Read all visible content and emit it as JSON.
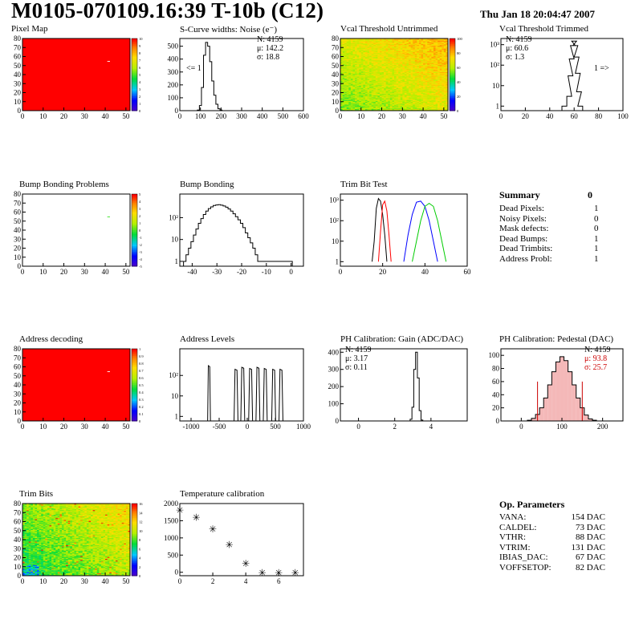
{
  "header": {
    "title": "M0105-070109.16:39 T-10b (C12)",
    "date": "Thu Jan 18 20:04:47 2007"
  },
  "panels": {
    "pixel_map": {
      "title": "Pixel Map"
    },
    "scurve": {
      "title": "S-Curve widths: Noise (e⁻)",
      "stats": [
        "N: 4159",
        "μ: 142.2",
        "σ: 18.8"
      ],
      "under_label": "<= 1"
    },
    "vcal_untrimmed": {
      "title": "Vcal Threshold Untrimmed"
    },
    "vcal_trimmed": {
      "title": "Vcal Threshold Trimmed",
      "stats": [
        "N: 4159",
        "μ: 60.6",
        "σ:  1.3"
      ],
      "over_label": "1 =>"
    },
    "bump_problems": {
      "title": "Bump Bonding Problems"
    },
    "bump_bonding": {
      "title": "Bump Bonding"
    },
    "trim_bit_test": {
      "title": "Trim Bit Test"
    },
    "address_decoding": {
      "title": "Address decoding"
    },
    "address_levels": {
      "title": "Address Levels"
    },
    "ph_gain": {
      "title": "PH Calibration: Gain (ADC/DAC)",
      "stats": [
        "N: 4159",
        "μ: 3.17",
        "σ: 0.11"
      ]
    },
    "ph_pedestal": {
      "title": "PH Calibration: Pedestal (DAC)",
      "stats": [
        "N: 4159",
        "μ: 93.8",
        "σ: 25.7"
      ]
    },
    "trim_bits": {
      "title": "Trim Bits"
    },
    "temperature": {
      "title": "Temperature calibration"
    }
  },
  "summary": {
    "heading": "Summary",
    "total": "0",
    "rows": [
      {
        "label": "Dead Pixels:",
        "value": "1"
      },
      {
        "label": "Noisy Pixels:",
        "value": "0"
      },
      {
        "label": "Mask defects:",
        "value": "0"
      },
      {
        "label": "Dead Bumps:",
        "value": "1"
      },
      {
        "label": "Dead Trimbits:",
        "value": "1"
      },
      {
        "label": "Address Probl:",
        "value": "1"
      }
    ]
  },
  "op_params": {
    "heading": "Op. Parameters",
    "rows": [
      {
        "label": "VANA:",
        "value": "154 DAC"
      },
      {
        "label": "CALDEL:",
        "value": "73 DAC"
      },
      {
        "label": "VTHR:",
        "value": "88 DAC"
      },
      {
        "label": "VTRIM:",
        "value": "131 DAC"
      },
      {
        "label": "IBIAS_DAC:",
        "value": "67 DAC"
      },
      {
        "label": "VOFFSETOP:",
        "value": "82 DAC"
      }
    ]
  },
  "colors": {
    "map_red": "#ff0000",
    "hist_line": "#000000",
    "trim_red": "#ff0000",
    "trim_blue": "#0000ff",
    "trim_green": "#00cc00",
    "pedestal_red": "#cc0000"
  },
  "chart_data": [
    {
      "id": "pixel_map",
      "type": "heatmap",
      "xlim": [
        0,
        52
      ],
      "ylim": [
        0,
        80
      ],
      "xticks": [
        0,
        10,
        20,
        30,
        40,
        50
      ],
      "yticks": [
        0,
        10,
        20,
        30,
        40,
        50,
        60,
        70,
        80
      ],
      "fill_value": 10,
      "zlim": [
        0,
        10
      ],
      "palette_ticks": [
        "10",
        "9",
        "8",
        "7",
        "6",
        "5",
        "4",
        "3",
        "2",
        "1",
        "0"
      ],
      "cells": [
        {
          "x": 41,
          "y": 54,
          "z": 0
        }
      ]
    },
    {
      "id": "scurve",
      "type": "bar",
      "xlim": [
        0,
        600
      ],
      "ylim": [
        0,
        560
      ],
      "xticks": [
        0,
        100,
        200,
        300,
        400,
        500,
        600
      ],
      "yticks": [
        0,
        100,
        200,
        300,
        400,
        500
      ],
      "x": [
        80,
        90,
        100,
        110,
        120,
        130,
        140,
        150,
        160,
        170,
        180,
        190,
        200,
        210
      ],
      "values": [
        0,
        5,
        40,
        180,
        430,
        530,
        500,
        380,
        230,
        120,
        50,
        15,
        5,
        0
      ]
    },
    {
      "id": "vcal_untrimmed",
      "type": "heatmap",
      "xlim": [
        0,
        52
      ],
      "ylim": [
        0,
        80
      ],
      "xticks": [
        0,
        10,
        20,
        30,
        40,
        50
      ],
      "yticks": [
        0,
        10,
        20,
        30,
        40,
        50,
        60,
        70,
        80
      ],
      "zlim": [
        0,
        110
      ],
      "palette_ticks": [
        "100",
        "80",
        "60",
        "40",
        "20",
        "0"
      ],
      "pattern": "gradient",
      "z_range": [
        60,
        90
      ]
    },
    {
      "id": "vcal_trimmed",
      "type": "bar",
      "log_y": true,
      "xlim": [
        0,
        100
      ],
      "ylim": [
        0.6,
        2000
      ],
      "xticks": [
        0,
        20,
        40,
        60,
        80,
        100
      ],
      "yticks": [
        1,
        10,
        100,
        1000
      ],
      "ytick_labels": [
        "1",
        "10",
        "10²",
        "10³"
      ],
      "x": [
        52,
        56,
        57,
        58,
        59,
        60,
        61,
        62,
        63,
        64,
        65
      ],
      "values": [
        1,
        3,
        30,
        200,
        900,
        1500,
        900,
        250,
        40,
        5,
        1
      ]
    },
    {
      "id": "bump_problems",
      "type": "heatmap",
      "xlim": [
        0,
        52
      ],
      "ylim": [
        0,
        80
      ],
      "xticks": [
        0,
        10,
        20,
        30,
        40,
        50
      ],
      "yticks": [
        0,
        10,
        20,
        30,
        40,
        50,
        60,
        70,
        80
      ],
      "fill_value": null,
      "zlim": [
        -5,
        5
      ],
      "palette_ticks": [
        "5",
        "4",
        "3",
        "2",
        "1",
        "0",
        "-1",
        "-2",
        "-3",
        "-4",
        "-5"
      ],
      "cells": [
        {
          "x": 41,
          "y": 54,
          "z": 0
        }
      ]
    },
    {
      "id": "bump_bonding",
      "type": "bar",
      "log_y": true,
      "xlim": [
        -45,
        5
      ],
      "ylim": [
        0.6,
        1200
      ],
      "xticks": [
        -40,
        -30,
        -20,
        -10,
        0
      ],
      "yticks": [
        1,
        10,
        100
      ],
      "ytick_labels": [
        "1",
        "10",
        "10²"
      ],
      "x": [
        -43,
        -42,
        -41,
        -40,
        -39,
        -38,
        -37,
        -36,
        -35,
        -34,
        -33,
        -32,
        -31,
        -30,
        -29,
        -28,
        -27,
        -26,
        -25,
        -24,
        -23,
        -22,
        -21,
        -20,
        -19,
        -18,
        -17,
        -16,
        -15,
        -14,
        -13,
        -12,
        0
      ],
      "values": [
        1,
        2,
        4,
        8,
        16,
        30,
        55,
        90,
        140,
        200,
        260,
        310,
        360,
        380,
        390,
        370,
        340,
        300,
        250,
        200,
        150,
        110,
        80,
        55,
        35,
        20,
        12,
        7,
        4,
        2,
        1,
        1,
        1
      ]
    },
    {
      "id": "trim_bit_test",
      "type": "line",
      "log_y": true,
      "xlim": [
        0,
        60
      ],
      "ylim": [
        0.6,
        2000
      ],
      "xticks": [
        0,
        20,
        40,
        60
      ],
      "yticks": [
        1,
        10,
        100,
        1000
      ],
      "ytick_labels": [
        "1",
        "10",
        "10²",
        "10³"
      ],
      "series": [
        {
          "color": "#000000",
          "x": [
            15,
            16,
            17,
            18,
            19,
            20,
            21,
            22
          ],
          "values": [
            1,
            10,
            400,
            1200,
            900,
            200,
            20,
            1
          ]
        },
        {
          "color": "#ff0000",
          "x": [
            18,
            19,
            20,
            21,
            22,
            23,
            24
          ],
          "values": [
            1,
            30,
            600,
            900,
            300,
            20,
            1
          ]
        },
        {
          "color": "#0000ff",
          "x": [
            30,
            32,
            34,
            36,
            38,
            40,
            42,
            44,
            46
          ],
          "values": [
            1,
            20,
            200,
            800,
            900,
            500,
            100,
            10,
            1
          ]
        },
        {
          "color": "#00cc00",
          "x": [
            34,
            36,
            38,
            40,
            42,
            44,
            46,
            48,
            50
          ],
          "values": [
            1,
            10,
            100,
            500,
            700,
            500,
            100,
            10,
            1
          ]
        }
      ]
    },
    {
      "id": "address_decoding",
      "type": "heatmap",
      "xlim": [
        0,
        52
      ],
      "ylim": [
        0,
        80
      ],
      "xticks": [
        0,
        10,
        20,
        30,
        40,
        50
      ],
      "yticks": [
        0,
        10,
        20,
        30,
        40,
        50,
        60,
        70,
        80
      ],
      "fill_value": 1,
      "zlim": [
        0,
        1
      ],
      "palette_ticks": [
        "1",
        "0.9",
        "0.8",
        "0.7",
        "0.6",
        "0.5",
        "0.4",
        "0.3",
        "0.2",
        "0.1",
        "0"
      ],
      "cells": [
        {
          "x": 41,
          "y": 54,
          "z": 0
        }
      ]
    },
    {
      "id": "address_levels",
      "type": "bar",
      "log_y": true,
      "xlim": [
        -1200,
        1000
      ],
      "ylim": [
        0.6,
        2000
      ],
      "xticks": [
        -1000,
        -500,
        0,
        500,
        1000
      ],
      "yticks": [
        1,
        10,
        100
      ],
      "ytick_labels": [
        "1",
        "10",
        "10²"
      ],
      "peaks": [
        -680,
        -200,
        -80,
        60,
        190,
        320,
        470,
        600
      ],
      "peak_heights": [
        300,
        200,
        250,
        220,
        250,
        220,
        200,
        200
      ],
      "peak_widths": [
        25,
        35,
        35,
        35,
        35,
        35,
        35,
        35
      ]
    },
    {
      "id": "ph_gain",
      "type": "bar",
      "xlim": [
        -1,
        6
      ],
      "ylim": [
        0,
        420
      ],
      "xticks": [
        0,
        2,
        4
      ],
      "yticks": [
        0,
        100,
        200,
        300,
        400
      ],
      "x": [
        2.8,
        2.9,
        3.0,
        3.1,
        3.2,
        3.3,
        3.4,
        3.5,
        3.6
      ],
      "values": [
        0,
        10,
        80,
        300,
        400,
        250,
        60,
        5,
        0
      ]
    },
    {
      "id": "ph_pedestal",
      "type": "bar",
      "xlim": [
        -50,
        250
      ],
      "ylim": [
        0,
        110
      ],
      "xticks": [
        0,
        100,
        200
      ],
      "yticks": [
        0,
        20,
        40,
        60,
        80,
        100
      ],
      "x": [
        20,
        30,
        40,
        50,
        60,
        70,
        80,
        90,
        100,
        110,
        120,
        130,
        140,
        150,
        160,
        170,
        180
      ],
      "values": [
        1,
        4,
        10,
        20,
        35,
        55,
        75,
        90,
        98,
        92,
        75,
        55,
        35,
        20,
        9,
        3,
        1
      ],
      "fit_lines": [
        40,
        150
      ]
    },
    {
      "id": "trim_bits",
      "type": "heatmap",
      "xlim": [
        0,
        52
      ],
      "ylim": [
        0,
        80
      ],
      "xticks": [
        0,
        10,
        20,
        30,
        40,
        50
      ],
      "yticks": [
        0,
        10,
        20,
        30,
        40,
        50,
        60,
        70,
        80
      ],
      "zlim": [
        0,
        16
      ],
      "palette_ticks": [
        "16",
        "14",
        "12",
        "10",
        "8",
        "6",
        "4",
        "2",
        "0"
      ],
      "pattern": "noise",
      "z_range": [
        7,
        12
      ]
    },
    {
      "id": "temperature",
      "type": "scatter",
      "xlim": [
        0,
        7.5
      ],
      "ylim": [
        -100,
        2000
      ],
      "xticks": [
        0,
        2,
        4,
        6
      ],
      "yticks": [
        0,
        500,
        1000,
        1500,
        2000
      ],
      "x": [
        0,
        1,
        2,
        3,
        4,
        5,
        6,
        7
      ],
      "values": [
        1820,
        1620,
        1280,
        820,
        270,
        0,
        0,
        10
      ]
    }
  ]
}
